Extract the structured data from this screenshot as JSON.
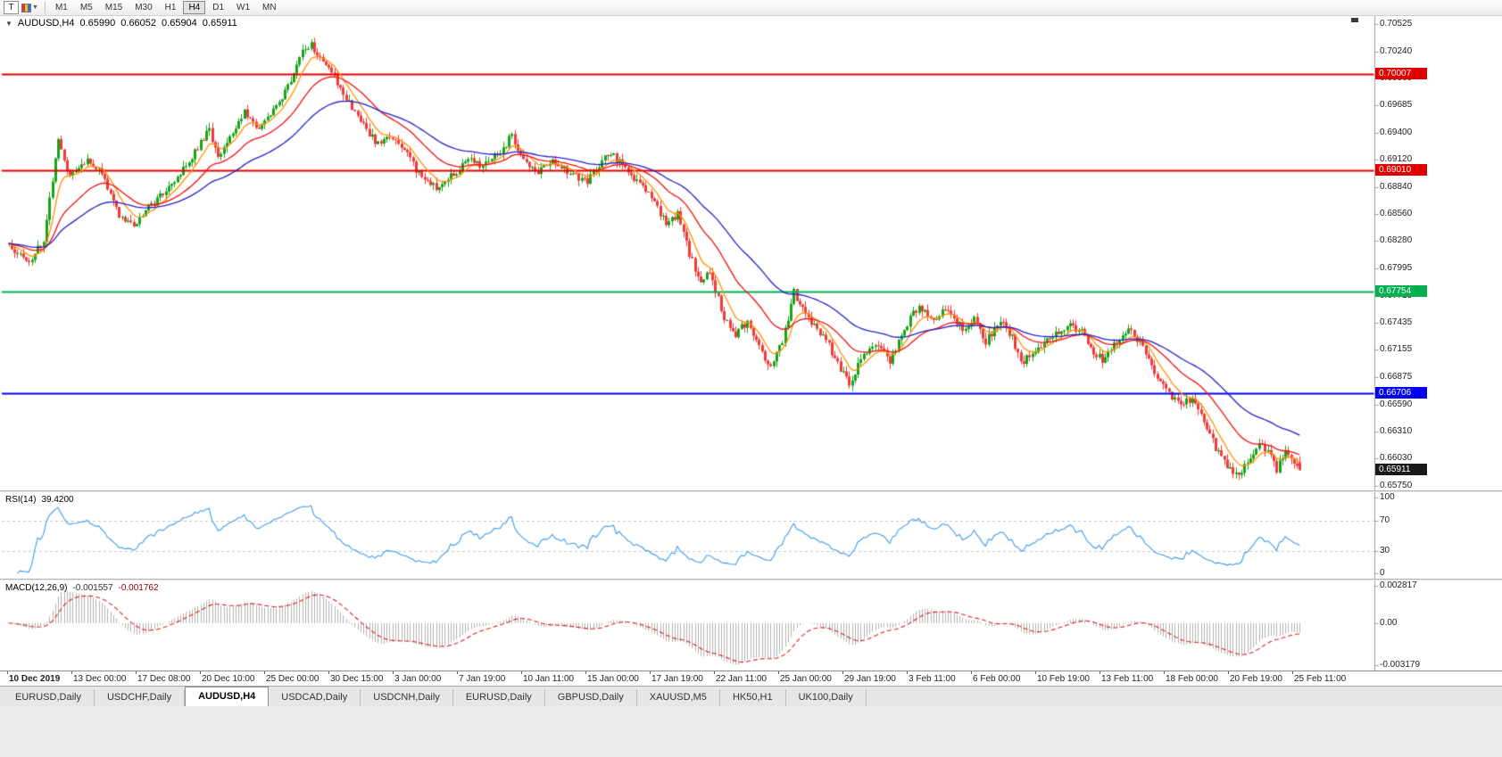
{
  "toolbar": {
    "text_tool_label": "T",
    "timeframes": [
      "M1",
      "M5",
      "M15",
      "M30",
      "H1",
      "H4",
      "D1",
      "W1",
      "MN"
    ],
    "active_timeframe": "H4"
  },
  "chart_header": {
    "collapse_icon": "▼",
    "symbol": "AUDUSD,H4",
    "open": "0.65990",
    "high": "0.66052",
    "low": "0.65904",
    "close": "0.65911"
  },
  "rsi_header": {
    "name": "RSI(14)",
    "value": "39.4200"
  },
  "macd_header": {
    "name": "MACD(12,26,9)",
    "value": "-0.001557",
    "signal": "-0.001762"
  },
  "tabs": [
    {
      "label": "EURUSD,Daily",
      "active": false
    },
    {
      "label": "USDCHF,Daily",
      "active": false
    },
    {
      "label": "AUDUSD,H4",
      "active": true
    },
    {
      "label": "USDCAD,Daily",
      "active": false
    },
    {
      "label": "USDCNH,Daily",
      "active": false
    },
    {
      "label": "EURUSD,Daily",
      "active": false
    },
    {
      "label": "GBPUSD,Daily",
      "active": false
    },
    {
      "label": "XAUUSD,M5",
      "active": false
    },
    {
      "label": "HK50,H1",
      "active": false
    },
    {
      "label": "UK100,Daily",
      "active": false
    }
  ],
  "chart_data": {
    "type": "candlestick",
    "symbol": "AUDUSD",
    "timeframe": "H4",
    "num_candles": 445,
    "seed": 1203,
    "noise": 0.0008,
    "wick": 0.0006,
    "last_candle": {
      "o": 0.6599,
      "h": 0.66052,
      "l": 0.65904,
      "c": 0.65911
    },
    "price_axis": {
      "min": 0.657,
      "max": 0.7061,
      "ticks": [
        "0.70525",
        "0.70240",
        "0.69960",
        "0.69685",
        "0.69400",
        "0.69120",
        "0.68840",
        "0.68560",
        "0.68280",
        "0.67995",
        "0.67715",
        "0.67435",
        "0.67155",
        "0.66875",
        "0.66590",
        "0.66310",
        "0.66030",
        "0.65750"
      ]
    },
    "levels": [
      {
        "value": 0.70007,
        "label": "0.70007",
        "color": "#E00000",
        "type": "resistance"
      },
      {
        "value": 0.6901,
        "label": "0.69010",
        "color": "#E00000",
        "type": "resistance"
      },
      {
        "value": 0.67754,
        "label": "0.67754",
        "color": "#00B050",
        "type": "support"
      },
      {
        "value": 0.66706,
        "label": "0.66706",
        "color": "#0000F0",
        "type": "support"
      }
    ],
    "current_price": {
      "value": 0.65911,
      "label": "0.65911",
      "color": "#1a1a1a"
    },
    "moving_averages": [
      {
        "period": 8,
        "color": "#FF9100"
      },
      {
        "period": 24,
        "color": "#F01010"
      },
      {
        "period": 50,
        "color": "#2121CC"
      }
    ],
    "close_waypoints": [
      [
        0,
        0.6826
      ],
      [
        4,
        0.6812
      ],
      [
        7,
        0.6803
      ],
      [
        12,
        0.683
      ],
      [
        17,
        0.6936
      ],
      [
        21,
        0.6893
      ],
      [
        24,
        0.6902
      ],
      [
        27,
        0.6916
      ],
      [
        32,
        0.6897
      ],
      [
        38,
        0.6853
      ],
      [
        43,
        0.6845
      ],
      [
        50,
        0.6868
      ],
      [
        60,
        0.6902
      ],
      [
        66,
        0.693
      ],
      [
        69,
        0.6943
      ],
      [
        72,
        0.6912
      ],
      [
        78,
        0.6945
      ],
      [
        81,
        0.6962
      ],
      [
        85,
        0.6943
      ],
      [
        92,
        0.6965
      ],
      [
        97,
        0.6995
      ],
      [
        101,
        0.7024
      ],
      [
        104,
        0.7032
      ],
      [
        108,
        0.7012
      ],
      [
        113,
        0.6993
      ],
      [
        120,
        0.6955
      ],
      [
        127,
        0.6928
      ],
      [
        131,
        0.6938
      ],
      [
        136,
        0.6921
      ],
      [
        141,
        0.6897
      ],
      [
        147,
        0.6883
      ],
      [
        153,
        0.6898
      ],
      [
        158,
        0.6912
      ],
      [
        163,
        0.6905
      ],
      [
        169,
        0.692
      ],
      [
        173,
        0.6938
      ],
      [
        177,
        0.691
      ],
      [
        182,
        0.69
      ],
      [
        187,
        0.6913
      ],
      [
        193,
        0.6898
      ],
      [
        199,
        0.689
      ],
      [
        203,
        0.6908
      ],
      [
        207,
        0.6921
      ],
      [
        211,
        0.6905
      ],
      [
        216,
        0.689
      ],
      [
        221,
        0.6872
      ],
      [
        226,
        0.6848
      ],
      [
        230,
        0.6855
      ],
      [
        234,
        0.6815
      ],
      [
        238,
        0.6785
      ],
      [
        241,
        0.6797
      ],
      [
        246,
        0.675
      ],
      [
        250,
        0.6731
      ],
      [
        254,
        0.6746
      ],
      [
        258,
        0.6718
      ],
      [
        262,
        0.6698
      ],
      [
        266,
        0.6723
      ],
      [
        270,
        0.6775
      ],
      [
        273,
        0.676
      ],
      [
        277,
        0.674
      ],
      [
        281,
        0.6728
      ],
      [
        284,
        0.6705
      ],
      [
        287,
        0.669
      ],
      [
        289,
        0.6678
      ],
      [
        293,
        0.6706
      ],
      [
        298,
        0.6722
      ],
      [
        303,
        0.6704
      ],
      [
        308,
        0.6738
      ],
      [
        313,
        0.6762
      ],
      [
        318,
        0.6748
      ],
      [
        323,
        0.6757
      ],
      [
        328,
        0.6736
      ],
      [
        332,
        0.6746
      ],
      [
        336,
        0.6724
      ],
      [
        341,
        0.6744
      ],
      [
        345,
        0.673
      ],
      [
        348,
        0.67
      ],
      [
        353,
        0.6716
      ],
      [
        358,
        0.6728
      ],
      [
        364,
        0.6742
      ],
      [
        369,
        0.6734
      ],
      [
        372,
        0.6718
      ],
      [
        376,
        0.6704
      ],
      [
        381,
        0.6724
      ],
      [
        385,
        0.6736
      ],
      [
        390,
        0.6718
      ],
      [
        394,
        0.6694
      ],
      [
        398,
        0.6672
      ],
      [
        403,
        0.6656
      ],
      [
        407,
        0.6667
      ],
      [
        411,
        0.664
      ],
      [
        415,
        0.6614
      ],
      [
        419,
        0.6595
      ],
      [
        423,
        0.6586
      ],
      [
        427,
        0.6605
      ],
      [
        430,
        0.6621
      ],
      [
        433,
        0.6609
      ],
      [
        436,
        0.6591
      ],
      [
        439,
        0.6613
      ],
      [
        442,
        0.66
      ],
      [
        444,
        0.65911
      ]
    ],
    "time_axis": [
      "10 Dec 2019",
      "13 Dec 00:00",
      "17 Dec 08:00",
      "20 Dec 10:00",
      "25 Dec 00:00",
      "30 Dec 15:00",
      "3 Jan 00:00",
      "7 Jan 19:00",
      "10 Jan 11:00",
      "15 Jan 00:00",
      "17 Jan 19:00",
      "22 Jan 11:00",
      "25 Jan 00:00",
      "29 Jan 19:00",
      "3 Feb 11:00",
      "6 Feb 00:00",
      "10 Feb 19:00",
      "13 Feb 11:00",
      "18 Feb 00:00",
      "20 Feb 19:00",
      "25 Feb 11:00"
    ],
    "rsi": {
      "period": 14,
      "levels": [
        70,
        30
      ],
      "axis_values": [
        100,
        70,
        30,
        0
      ],
      "axis_labels": [
        "100",
        "70",
        "30",
        "0"
      ],
      "color": "#3E9BE9"
    },
    "macd": {
      "fast": 12,
      "slow": 26,
      "signal": 9,
      "axis_values": [
        0.002817,
        0,
        -0.003179
      ],
      "axis_labels": [
        "0.002817",
        "0.00",
        "-0.003179"
      ],
      "histogram_color": "#B0B0B0",
      "signal_color": "#E02020"
    },
    "colors": {
      "up": "#18A318",
      "down": "#F23A3A",
      "dashed_level": "#C4C4C4",
      "axis_line": "#9C9C9C"
    }
  }
}
